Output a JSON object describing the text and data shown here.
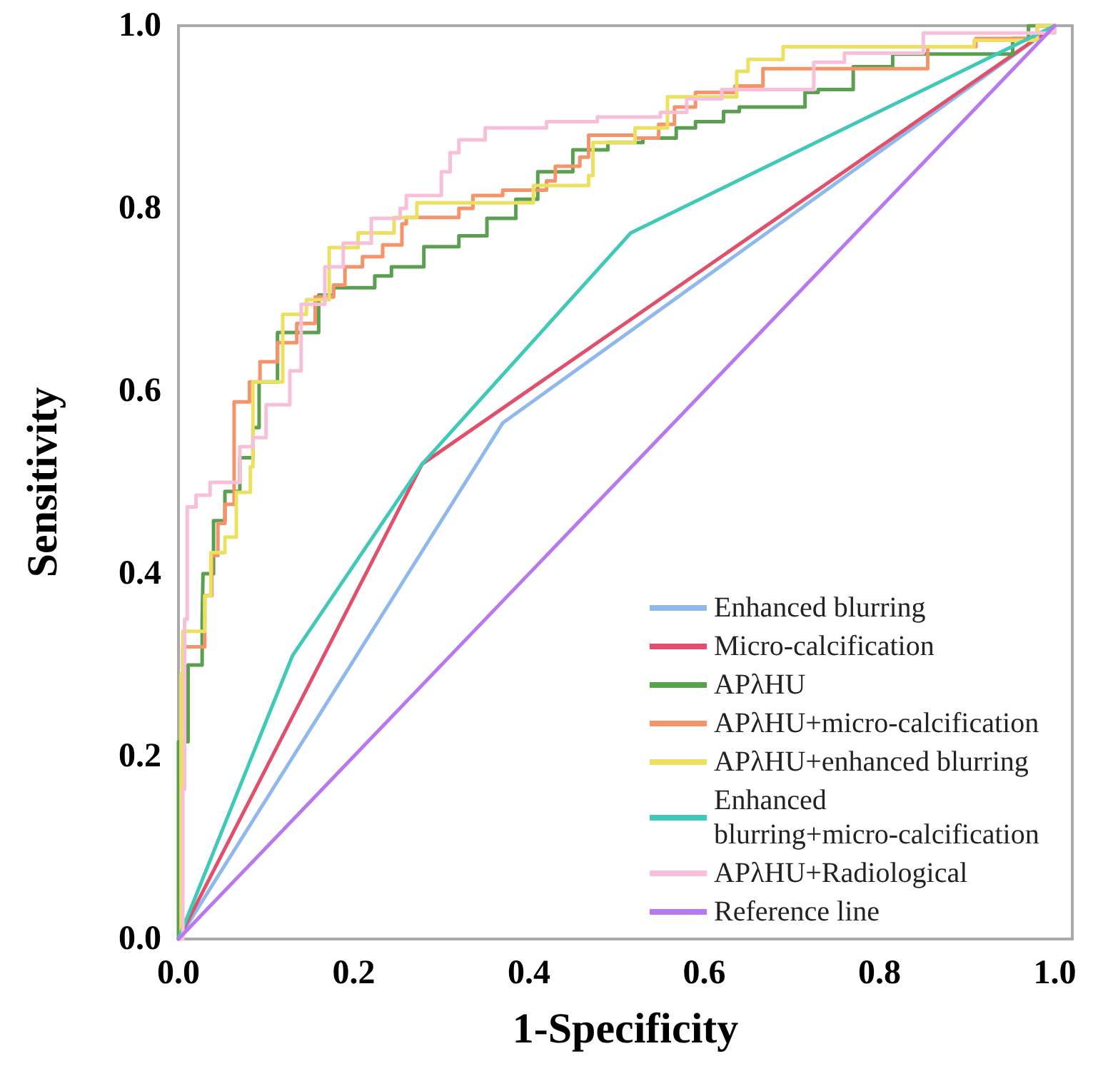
{
  "chart_data": {
    "type": "step",
    "xlabel": "1-Specificity",
    "ylabel": "Sensitivity",
    "xlim": [
      0,
      1.02
    ],
    "ylim": [
      0,
      1
    ],
    "xticks": [
      {
        "value": 0,
        "label": "0.0"
      },
      {
        "value": 0.2,
        "label": "0.2"
      },
      {
        "value": 0.4,
        "label": "0.4"
      },
      {
        "value": 0.6,
        "label": "0.6"
      },
      {
        "value": 0.8,
        "label": "0.8"
      },
      {
        "value": 1,
        "label": "1.0"
      }
    ],
    "yticks": [
      {
        "value": 0,
        "label": "0.0"
      },
      {
        "value": 0.2,
        "label": "0.2"
      },
      {
        "value": 0.4,
        "label": "0.4"
      },
      {
        "value": 0.6,
        "label": "0.6"
      },
      {
        "value": 0.8,
        "label": "0.8"
      },
      {
        "value": 1,
        "label": "1.0"
      }
    ],
    "grid": false,
    "legend": "bottom right",
    "marker": "none",
    "line_style": "solid",
    "series": [
      {
        "name": "Enhanced blurring",
        "type": "line",
        "color": "#8fb8ec",
        "x": [
          0,
          0.37,
          1
        ],
        "values": [
          0,
          0.565,
          1
        ]
      },
      {
        "name": "Micro-calcification",
        "type": "line",
        "color": "#e0506a",
        "x": [
          0,
          0.278,
          1
        ],
        "values": [
          0,
          0.52,
          1
        ]
      },
      {
        "name": "APλHU",
        "color": "#5aa050",
        "x": [
          0,
          0,
          0.011,
          0.027,
          0.028,
          0.04,
          0.053,
          0.07,
          0.085,
          0.092,
          0.113,
          0.16,
          0.177,
          0.224,
          0.243,
          0.28,
          0.32,
          0.352,
          0.385,
          0.41,
          0.45,
          0.49,
          0.53,
          0.568,
          0.59,
          0.622,
          0.64,
          0.715,
          0.73,
          0.77,
          0.815,
          0.952,
          0.97,
          1
        ],
        "values": [
          0,
          0.216,
          0.3,
          0.348,
          0.4,
          0.458,
          0.49,
          0.527,
          0.56,
          0.61,
          0.664,
          0.705,
          0.713,
          0.726,
          0.736,
          0.758,
          0.77,
          0.789,
          0.81,
          0.84,
          0.864,
          0.872,
          0.877,
          0.888,
          0.895,
          0.906,
          0.911,
          0.927,
          0.93,
          0.955,
          0.969,
          0.986,
          1,
          1
        ]
      },
      {
        "name": "APλHU+micro-calcification",
        "color": "#f5946a",
        "x": [
          0,
          0.003,
          0.005,
          0.03,
          0.038,
          0.045,
          0.053,
          0.0635,
          0.081,
          0.093,
          0.113,
          0.135,
          0.156,
          0.177,
          0.19,
          0.21,
          0.233,
          0.255,
          0.26,
          0.32,
          0.336,
          0.37,
          0.42,
          0.43,
          0.458,
          0.468,
          0.521,
          0.548,
          0.566,
          0.59,
          0.635,
          0.667,
          0.855,
          0.91,
          0.98,
          1
        ],
        "values": [
          0,
          0.24,
          0.32,
          0.376,
          0.42,
          0.455,
          0.476,
          0.588,
          0.61,
          0.632,
          0.653,
          0.674,
          0.703,
          0.716,
          0.736,
          0.747,
          0.76,
          0.783,
          0.79,
          0.8,
          0.814,
          0.82,
          0.83,
          0.846,
          0.856,
          0.88,
          0.877,
          0.892,
          0.911,
          0.927,
          0.934,
          0.953,
          0.977,
          0.986,
          1,
          1
        ]
      },
      {
        "name": "APλHU+enhanced blurring",
        "color": "#ece060",
        "x": [
          0,
          0.003,
          0.005,
          0.03,
          0.037,
          0.053,
          0.066,
          0.082,
          0.085,
          0.119,
          0.146,
          0.172,
          0.205,
          0.246,
          0.272,
          0.405,
          0.468,
          0.473,
          0.521,
          0.558,
          0.637,
          0.65,
          0.69,
          0.908,
          0.98,
          1
        ],
        "values": [
          0,
          0.29,
          0.337,
          0.376,
          0.423,
          0.44,
          0.489,
          0.517,
          0.61,
          0.684,
          0.7,
          0.757,
          0.773,
          0.79,
          0.806,
          0.825,
          0.836,
          0.872,
          0.888,
          0.922,
          0.95,
          0.963,
          0.977,
          0.984,
          1,
          1
        ]
      },
      {
        "name": "Enhanced blurring+micro-calcification",
        "type": "line",
        "color": "#40c8b8",
        "x": [
          0,
          0.13,
          0.278,
          0.516,
          1
        ],
        "values": [
          0,
          0.31,
          0.52,
          0.773,
          1
        ]
      },
      {
        "name": "APλHU+Radiological",
        "color": "#f8c0d8",
        "x": [
          0,
          0.005,
          0.007,
          0.01,
          0.02,
          0.036,
          0.07,
          0.085,
          0.1,
          0.127,
          0.14,
          0.167,
          0.188,
          0.22,
          0.253,
          0.26,
          0.3,
          0.31,
          0.32,
          0.35,
          0.42,
          0.478,
          0.55,
          0.58,
          0.62,
          0.725,
          0.76,
          0.85,
          1
        ],
        "values": [
          0,
          0.164,
          0.35,
          0.473,
          0.486,
          0.5,
          0.539,
          0.549,
          0.585,
          0.622,
          0.695,
          0.736,
          0.762,
          0.789,
          0.8,
          0.814,
          0.84,
          0.861,
          0.875,
          0.888,
          0.895,
          0.9,
          0.905,
          0.92,
          0.93,
          0.96,
          0.97,
          0.992,
          1
        ]
      },
      {
        "name": "Reference line",
        "type": "line",
        "color": "#b878f0",
        "x": [
          0,
          1
        ],
        "values": [
          0,
          1
        ]
      }
    ]
  }
}
